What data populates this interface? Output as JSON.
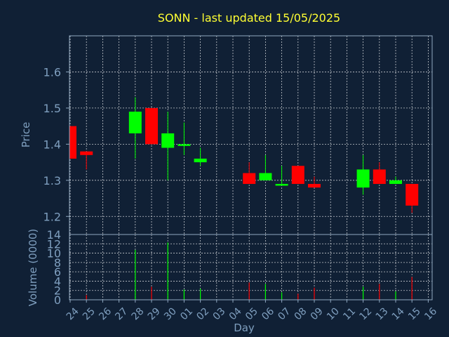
{
  "chart_data": {
    "type": "candlestick",
    "title": "SONN - last updated 15/05/2025",
    "xlabel": "Day",
    "price_panel": {
      "ylabel": "Price",
      "ylim": [
        1.15,
        1.7
      ],
      "yticks": [
        "1.2",
        "1.3",
        "1.4",
        "1.5",
        "1.6"
      ],
      "grid": true
    },
    "volume_panel": {
      "ylabel": "Volume (0000)",
      "ylim": [
        0,
        14
      ],
      "yticks": [
        "0",
        "2",
        "4",
        "6",
        "8",
        "10",
        "12",
        "14"
      ],
      "grid": true
    },
    "x_tick_labels": [
      "24",
      "25",
      "26",
      "27",
      "28",
      "29",
      "30",
      "01",
      "02",
      "03",
      "04",
      "05",
      "06",
      "07",
      "08",
      "09",
      "10",
      "11",
      "12",
      "13",
      "14",
      "15",
      "16"
    ],
    "candles": [
      {
        "day": "24",
        "open": 1.45,
        "close": 1.36,
        "high": 1.45,
        "low": 1.36,
        "volume": 0
      },
      {
        "day": "25",
        "open": 1.38,
        "close": 1.37,
        "high": 1.38,
        "low": 1.33,
        "volume": 1.0
      },
      {
        "day": "28",
        "open": 1.43,
        "close": 1.49,
        "high": 1.53,
        "low": 1.36,
        "volume": 10.7
      },
      {
        "day": "29",
        "open": 1.5,
        "close": 1.4,
        "high": 1.5,
        "low": 1.4,
        "volume": 2.8
      },
      {
        "day": "30",
        "open": 1.39,
        "close": 1.43,
        "high": 1.49,
        "low": 1.3,
        "volume": 12.3
      },
      {
        "day": "01",
        "open": 1.4,
        "close": 1.4,
        "high": 1.46,
        "low": 1.37,
        "volume": 2.2
      },
      {
        "day": "02",
        "open": 1.35,
        "close": 1.36,
        "high": 1.39,
        "low": 1.34,
        "volume": 2.4
      },
      {
        "day": "05",
        "open": 1.32,
        "close": 1.29,
        "high": 1.35,
        "low": 1.29,
        "volume": 3.7
      },
      {
        "day": "06",
        "open": 1.3,
        "close": 1.32,
        "high": 1.37,
        "low": 1.3,
        "volume": 3.4
      },
      {
        "day": "07",
        "open": 1.29,
        "close": 1.29,
        "high": 1.34,
        "low": 1.29,
        "volume": 1.6
      },
      {
        "day": "08",
        "open": 1.34,
        "close": 1.29,
        "high": 1.34,
        "low": 1.29,
        "volume": 1.3
      },
      {
        "day": "09",
        "open": 1.29,
        "close": 1.28,
        "high": 1.31,
        "low": 1.28,
        "volume": 2.6
      },
      {
        "day": "12",
        "open": 1.28,
        "close": 1.33,
        "high": 1.37,
        "low": 1.26,
        "volume": 2.8
      },
      {
        "day": "13",
        "open": 1.33,
        "close": 1.29,
        "high": 1.35,
        "low": 1.29,
        "volume": 3.4
      },
      {
        "day": "14",
        "open": 1.29,
        "close": 1.3,
        "high": 1.31,
        "low": 1.29,
        "volume": 1.8
      },
      {
        "day": "15",
        "open": 1.29,
        "close": 1.23,
        "high": 1.29,
        "low": 1.21,
        "volume": 4.9
      }
    ],
    "colors": {
      "background": "#102035",
      "up": "#00ff00",
      "down": "#ff0000",
      "title": "#ffff33",
      "axis_text": "#7f9fbf",
      "grid": "#ffffff",
      "frame": "#8fa8c0"
    }
  }
}
